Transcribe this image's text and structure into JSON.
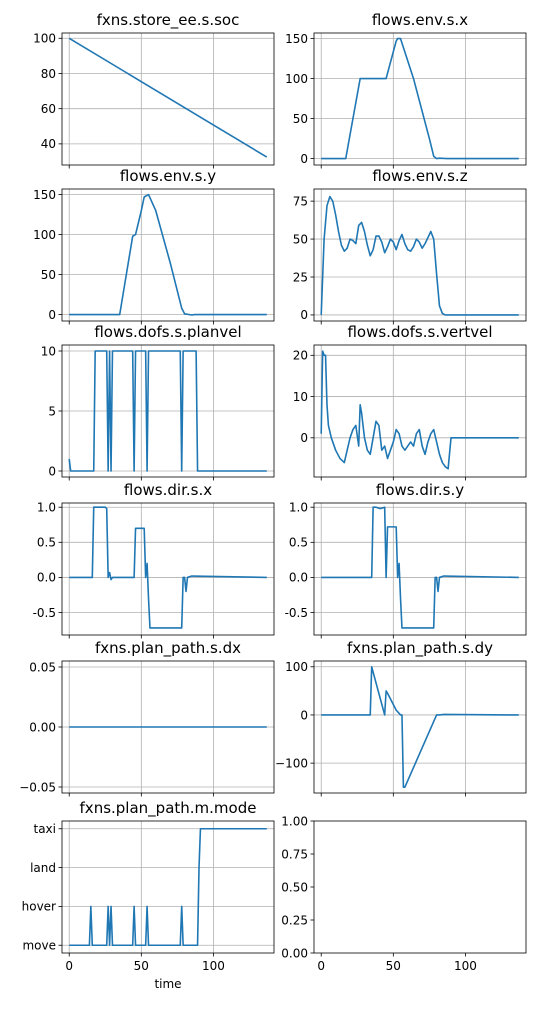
{
  "chart_data": [
    {
      "type": "line",
      "title": "fxns.store_ee.s.soc",
      "xlim": [
        -5,
        142
      ],
      "ylim": [
        28,
        103
      ],
      "xticks": [
        0,
        50,
        100
      ],
      "xtick_labels_visible": false,
      "yticks": [
        40,
        60,
        80,
        100
      ],
      "grid": true,
      "x": [
        0,
        137
      ],
      "y": [
        100,
        32.5
      ]
    },
    {
      "type": "line",
      "title": "flows.env.s.x",
      "xlim": [
        -5,
        142
      ],
      "ylim": [
        -8,
        157
      ],
      "xticks": [
        0,
        50,
        100
      ],
      "xtick_labels_visible": false,
      "yticks": [
        0,
        50,
        100,
        150
      ],
      "grid": true,
      "x": [
        0,
        17,
        27,
        28,
        34,
        45,
        52,
        53,
        55,
        64,
        75,
        78,
        80,
        82,
        87,
        137
      ],
      "y": [
        0,
        0,
        100,
        100,
        100,
        100,
        147,
        150,
        150,
        100,
        25,
        3,
        0,
        0.5,
        0,
        0
      ]
    },
    {
      "type": "line",
      "title": "flows.env.s.y",
      "xlim": [
        -5,
        142
      ],
      "ylim": [
        -8,
        157
      ],
      "xticks": [
        0,
        50,
        100
      ],
      "xtick_labels_visible": false,
      "yticks": [
        0,
        50,
        100,
        150
      ],
      "grid": true,
      "x": [
        0,
        35,
        44,
        46,
        50,
        52,
        55,
        60,
        70,
        78,
        80,
        85,
        87,
        137
      ],
      "y": [
        0,
        0,
        98,
        100,
        130,
        147,
        150,
        130,
        65,
        8,
        1,
        -0.5,
        0,
        0
      ]
    },
    {
      "type": "line",
      "title": "flows.env.s.z",
      "xlim": [
        -5,
        142
      ],
      "ylim": [
        -4,
        83
      ],
      "xticks": [
        0,
        50,
        100
      ],
      "xtick_labels_visible": false,
      "yticks": [
        0,
        25,
        50,
        75
      ],
      "grid": true,
      "x": [
        0,
        2,
        4,
        6,
        8,
        10,
        12,
        14,
        16,
        18,
        20,
        22,
        24,
        26,
        28,
        30,
        32,
        34,
        36,
        38,
        40,
        42,
        44,
        46,
        48,
        50,
        52,
        54,
        56,
        58,
        60,
        62,
        64,
        66,
        68,
        70,
        72,
        74,
        76,
        78,
        80,
        82,
        84,
        86,
        88,
        90,
        92,
        137
      ],
      "y": [
        0,
        50,
        72,
        78,
        75,
        66,
        55,
        46,
        42,
        44,
        50,
        49,
        47,
        59,
        61,
        55,
        46,
        39,
        43,
        52,
        52,
        48,
        41,
        45,
        50,
        48,
        43,
        49,
        53,
        47,
        43,
        42,
        45,
        50,
        48,
        44,
        47,
        51,
        55,
        50,
        27,
        6,
        1,
        0,
        0,
        0,
        0,
        0
      ]
    },
    {
      "type": "line",
      "title": "flows.dofs.s.planvel",
      "xlim": [
        -5,
        142
      ],
      "ylim": [
        -0.5,
        10.5
      ],
      "xticks": [
        0,
        50,
        100
      ],
      "xtick_labels_visible": false,
      "yticks": [
        0,
        5,
        10
      ],
      "grid": true,
      "x": [
        0,
        1,
        2,
        17,
        18,
        26,
        27,
        28,
        29,
        30,
        44,
        45,
        46,
        47,
        48,
        53,
        54,
        55,
        56,
        77,
        78,
        79,
        80,
        88,
        89,
        90,
        91,
        137
      ],
      "y": [
        1,
        0,
        0,
        0,
        10,
        10,
        0,
        10,
        0,
        10,
        10,
        0,
        10,
        10,
        10,
        10,
        0,
        10,
        10,
        10,
        0,
        10,
        10,
        10,
        0,
        0,
        0,
        0
      ]
    },
    {
      "type": "line",
      "title": "flows.dofs.s.vertvel",
      "xlim": [
        -5,
        142
      ],
      "ylim": [
        -9.5,
        22.5
      ],
      "xticks": [
        0,
        50,
        100
      ],
      "xtick_labels_visible": false,
      "yticks": [
        0,
        10,
        20
      ],
      "grid": true,
      "x": [
        0,
        1,
        2,
        3,
        4,
        5,
        7,
        10,
        13,
        16,
        18,
        20,
        22,
        24,
        26,
        27,
        28,
        30,
        32,
        34,
        36,
        38,
        40,
        42,
        44,
        46,
        48,
        50,
        52,
        54,
        56,
        58,
        60,
        62,
        64,
        66,
        68,
        70,
        72,
        74,
        76,
        78,
        80,
        82,
        84,
        86,
        88,
        90,
        92,
        137
      ],
      "y": [
        1,
        21,
        20,
        20,
        8,
        3,
        0,
        -3,
        -5,
        -6,
        -3,
        0,
        2,
        3,
        -2,
        8,
        6,
        0,
        -3,
        -4,
        0,
        4,
        3,
        -3,
        -2,
        -5,
        -3,
        -1,
        2,
        1,
        -2,
        -3,
        -2,
        -1,
        -2,
        1,
        2,
        -2,
        -4,
        -1,
        1,
        2,
        -1,
        -4,
        -6,
        -7,
        -7.5,
        0,
        0,
        0
      ]
    },
    {
      "type": "line",
      "title": "flows.dir.s.x",
      "xlim": [
        -5,
        142
      ],
      "ylim": [
        -0.82,
        1.06
      ],
      "xticks": [
        0,
        50,
        100
      ],
      "xtick_labels_visible": false,
      "yticks": [
        -0.5,
        0.0,
        0.5,
        1.0
      ],
      "grid": true,
      "x": [
        0,
        16,
        17,
        18,
        25,
        26,
        27,
        28,
        29,
        30,
        45,
        46,
        47,
        52,
        53,
        54,
        55,
        56,
        57,
        58,
        78,
        79,
        80,
        81,
        82,
        85,
        137
      ],
      "y": [
        0,
        0,
        1,
        1,
        1,
        0.98,
        0,
        0.07,
        -0.03,
        0,
        0,
        0.7,
        0.7,
        0.7,
        0,
        0.2,
        -0.3,
        -0.72,
        -0.72,
        -0.72,
        -0.72,
        0,
        0,
        -0.2,
        0,
        0.02,
        0
      ]
    },
    {
      "type": "line",
      "title": "flows.dir.s.y",
      "xlim": [
        -5,
        142
      ],
      "ylim": [
        -0.82,
        1.06
      ],
      "xticks": [
        0,
        50,
        100
      ],
      "xtick_labels_visible": false,
      "yticks": [
        -0.5,
        0.0,
        0.5,
        1.0
      ],
      "grid": true,
      "x": [
        0,
        35,
        36,
        38,
        41,
        44,
        45,
        46,
        47,
        52,
        53,
        54,
        55,
        56,
        57,
        58,
        78,
        79,
        80,
        81,
        82,
        85,
        137
      ],
      "y": [
        0,
        0,
        1,
        1,
        0.98,
        1,
        0,
        0.72,
        0.72,
        0.72,
        0,
        0.2,
        -0.3,
        -0.72,
        -0.72,
        -0.72,
        -0.72,
        0,
        0,
        -0.2,
        0,
        0.02,
        0
      ]
    },
    {
      "type": "line",
      "title": "fxns.plan_path.s.dx",
      "xlim": [
        -5,
        142
      ],
      "ylim": [
        -0.055,
        0.055
      ],
      "xticks": [
        0,
        50,
        100
      ],
      "xtick_labels_visible": false,
      "yticks": [
        -0.05,
        0.0,
        0.05
      ],
      "ytick_labels": [
        "−0.05",
        "0.00",
        "0.05"
      ],
      "grid": true,
      "x": [
        0,
        137
      ],
      "y": [
        0,
        0
      ]
    },
    {
      "type": "line",
      "title": "fxns.plan_path.s.dy",
      "xlim": [
        -5,
        142
      ],
      "ylim": [
        -162,
        112
      ],
      "xticks": [
        0,
        50,
        100
      ],
      "xtick_labels_visible": false,
      "yticks": [
        -100,
        0,
        100
      ],
      "ytick_labels": [
        "−100",
        "0",
        "100"
      ],
      "grid": true,
      "x": [
        0,
        34,
        35,
        44,
        45,
        46,
        52,
        55,
        56,
        57,
        58,
        80,
        82,
        85,
        137
      ],
      "y": [
        0,
        0,
        100,
        0,
        50,
        45,
        10,
        0,
        0,
        -150,
        -150,
        0,
        0,
        1,
        0
      ]
    },
    {
      "type": "line",
      "title": "fxns.plan_path.m.mode",
      "xlim": [
        -5,
        142
      ],
      "ylim": [
        -0.2,
        3.2
      ],
      "xticks": [
        0,
        50,
        100
      ],
      "xtick_labels": [
        "0",
        "50",
        "100"
      ],
      "xlabel": "time",
      "yticks": [
        0,
        1,
        2,
        3
      ],
      "ytick_labels": [
        "move",
        "hover",
        "land",
        "taxi"
      ],
      "grid": true,
      "x": [
        0,
        14,
        15,
        16,
        26,
        27,
        28,
        29,
        30,
        44,
        45,
        46,
        53,
        54,
        55,
        77,
        78,
        79,
        89,
        90,
        91,
        92,
        137
      ],
      "y": [
        0,
        0,
        1,
        0,
        0,
        1,
        0,
        1,
        0,
        0,
        1,
        0,
        0,
        1,
        0,
        0,
        1,
        0,
        0,
        2,
        3,
        3,
        3
      ]
    },
    {
      "type": "line",
      "title": "",
      "xlim": [
        -5,
        142
      ],
      "ylim": [
        0,
        1
      ],
      "xticks": [
        0,
        50,
        100
      ],
      "xtick_labels": [
        "0",
        "50",
        "100"
      ],
      "yticks": [
        0,
        0.25,
        0.5,
        0.75,
        1.0
      ],
      "ytick_labels": [
        "0.00",
        "0.25",
        "0.50",
        "0.75",
        "1.00"
      ],
      "grid": false,
      "x": [],
      "y": []
    }
  ]
}
